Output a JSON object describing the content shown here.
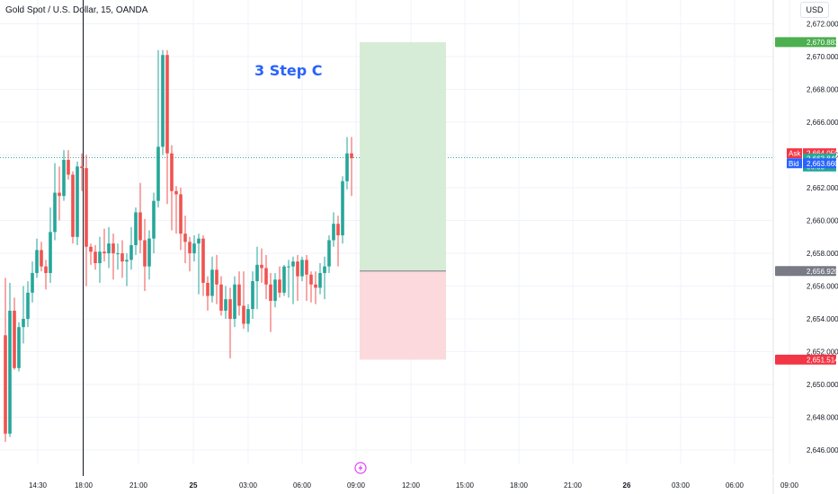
{
  "header": {
    "title": "Gold Spot / U.S. Dollar, 15, OANDA",
    "currency": "USD",
    "note": "3 Step C"
  },
  "colors": {
    "up": "#26a69a",
    "down": "#ef5350",
    "profit_zone": "#d6ecd6",
    "loss_zone": "#fbd9dc",
    "target_tag": "#4caf50",
    "stop_tag": "#f23645",
    "entry_tag": "#787b86",
    "ask_tag": "#f23645",
    "bid_tag": "#2962ff",
    "last_tag": "#26a69a",
    "bolt_icon": "#e040fb"
  },
  "chart_data": {
    "type": "candlestick",
    "title": "",
    "interval": "15",
    "y_axis": {
      "position": "right",
      "range": [
        2645.5,
        2673.4
      ],
      "ticks": [
        "2,646.000",
        "2,648.000",
        "2,650.000",
        "2,652.000",
        "2,654.000",
        "2,656.000",
        "2,658.000",
        "2,660.000",
        "2,662.000",
        "2,664.000",
        "2,666.000",
        "2,668.000",
        "2,670.000",
        "2,672.000"
      ]
    },
    "x_axis": {
      "ticks": [
        "14:30",
        "18:00",
        "21:00",
        "25",
        "03:00",
        "06:00",
        "09:00",
        "12:00",
        "15:00",
        "18:00",
        "21:00",
        "26",
        "03:00",
        "06:00",
        "09:00"
      ],
      "bold_ticks": [
        "25",
        "26"
      ]
    },
    "grid": true,
    "candles": [
      [
        2653.0,
        2656.5,
        2646.5,
        2647.0
      ],
      [
        2647.0,
        2656.2,
        2646.8,
        2654.5
      ],
      [
        2654.5,
        2655.3,
        2650.9,
        2651.0
      ],
      [
        2651.0,
        2653.8,
        2650.8,
        2653.5
      ],
      [
        2653.5,
        2656.0,
        2652.5,
        2654.0
      ],
      [
        2654.0,
        2656.3,
        2653.5,
        2655.6
      ],
      [
        2655.6,
        2657.5,
        2655.0,
        2656.8
      ],
      [
        2656.8,
        2658.9,
        2656.5,
        2658.2
      ],
      [
        2658.2,
        2658.7,
        2656.9,
        2657.2
      ],
      [
        2657.2,
        2657.6,
        2655.8,
        2656.8
      ],
      [
        2656.8,
        2660.8,
        2656.2,
        2659.3
      ],
      [
        2659.3,
        2663.5,
        2658.8,
        2661.7
      ],
      [
        2661.7,
        2663.3,
        2660.0,
        2661.5
      ],
      [
        2661.5,
        2664.3,
        2661.2,
        2663.7
      ],
      [
        2663.7,
        2664.3,
        2662.5,
        2662.8
      ],
      [
        2662.8,
        2663.0,
        2658.6,
        2659.0
      ],
      [
        2659.0,
        2663.6,
        2658.5,
        2663.3
      ],
      [
        2663.3,
        2664.1,
        2661.8,
        2663.2
      ],
      [
        2663.2,
        2664.0,
        2656.0,
        2658.4
      ],
      [
        2658.4,
        2658.6,
        2657.3,
        2658.1
      ],
      [
        2658.1,
        2658.5,
        2657.0,
        2657.4
      ],
      [
        2657.4,
        2659.0,
        2656.2,
        2658.1
      ],
      [
        2658.1,
        2659.5,
        2657.5,
        2658.0
      ],
      [
        2658.0,
        2659.6,
        2657.1,
        2658.6
      ],
      [
        2658.6,
        2659.2,
        2656.4,
        2658.0
      ],
      [
        2658.0,
        2658.6,
        2657.0,
        2658.0
      ],
      [
        2658.0,
        2658.8,
        2656.5,
        2657.5
      ],
      [
        2657.5,
        2658.0,
        2656.0,
        2657.6
      ],
      [
        2657.6,
        2659.6,
        2657.0,
        2658.5
      ],
      [
        2658.5,
        2660.8,
        2657.9,
        2660.5
      ],
      [
        2660.5,
        2662.3,
        2658.0,
        2658.8
      ],
      [
        2658.8,
        2660.1,
        2655.7,
        2657.2
      ],
      [
        2657.2,
        2659.4,
        2656.4,
        2658.9
      ],
      [
        2658.9,
        2661.7,
        2658.0,
        2661.2
      ],
      [
        2661.2,
        2670.4,
        2660.8,
        2664.5
      ],
      [
        2664.5,
        2670.4,
        2664.0,
        2670.1
      ],
      [
        2670.1,
        2670.4,
        2661.0,
        2664.1
      ],
      [
        2664.1,
        2664.6,
        2659.4,
        2661.8
      ],
      [
        2661.8,
        2662.1,
        2659.2,
        2661.6
      ],
      [
        2661.6,
        2662.0,
        2658.2,
        2659.2
      ],
      [
        2659.2,
        2660.3,
        2657.4,
        2658.7
      ],
      [
        2658.7,
        2659.0,
        2656.9,
        2658.0
      ],
      [
        2658.0,
        2659.1,
        2657.5,
        2658.6
      ],
      [
        2658.6,
        2659.2,
        2655.5,
        2658.9
      ],
      [
        2658.9,
        2659.1,
        2655.4,
        2656.2
      ],
      [
        2656.2,
        2656.6,
        2654.5,
        2655.4
      ],
      [
        2655.4,
        2657.8,
        2655.0,
        2657.0
      ],
      [
        2657.0,
        2657.9,
        2654.9,
        2656.1
      ],
      [
        2656.1,
        2656.6,
        2654.2,
        2654.5
      ],
      [
        2654.5,
        2656.0,
        2654.0,
        2655.2
      ],
      [
        2655.2,
        2655.9,
        2651.6,
        2654.0
      ],
      [
        2654.0,
        2656.6,
        2653.5,
        2656.1
      ],
      [
        2656.1,
        2656.9,
        2654.2,
        2654.8
      ],
      [
        2654.8,
        2656.9,
        2653.4,
        2653.7
      ],
      [
        2653.7,
        2654.9,
        2653.2,
        2654.6
      ],
      [
        2654.6,
        2656.9,
        2654.0,
        2656.3
      ],
      [
        2656.3,
        2658.4,
        2654.6,
        2657.3
      ],
      [
        2657.3,
        2658.3,
        2656.2,
        2657.1
      ],
      [
        2657.1,
        2657.9,
        2655.2,
        2656.1
      ],
      [
        2656.1,
        2656.8,
        2653.2,
        2655.1
      ],
      [
        2655.1,
        2656.8,
        2654.7,
        2656.4
      ],
      [
        2656.4,
        2657.2,
        2655.3,
        2655.6
      ],
      [
        2655.6,
        2657.3,
        2655.4,
        2657.2
      ],
      [
        2657.2,
        2657.6,
        2655.3,
        2657.2
      ],
      [
        2657.2,
        2657.8,
        2654.9,
        2657.5
      ],
      [
        2657.5,
        2657.9,
        2655.1,
        2656.6
      ],
      [
        2656.6,
        2657.8,
        2656.3,
        2657.6
      ],
      [
        2657.6,
        2657.9,
        2655.1,
        2656.7
      ],
      [
        2656.7,
        2656.9,
        2655.0,
        2656.1
      ],
      [
        2656.1,
        2656.9,
        2654.9,
        2655.9
      ],
      [
        2655.9,
        2657.4,
        2655.5,
        2656.8
      ],
      [
        2656.8,
        2657.8,
        2655.2,
        2657.2
      ],
      [
        2657.2,
        2659.1,
        2656.8,
        2658.8
      ],
      [
        2658.8,
        2660.5,
        2658.4,
        2659.8
      ],
      [
        2659.8,
        2660.3,
        2657.2,
        2659.1
      ],
      [
        2659.1,
        2662.7,
        2658.6,
        2662.4
      ],
      [
        2662.4,
        2665.1,
        2661.9,
        2664.1
      ],
      [
        2664.1,
        2665.1,
        2661.5,
        2663.8
      ]
    ],
    "vertical_marker_time": "18:00",
    "position": {
      "type": "long",
      "target": "2,670.883",
      "entry": "2,656.920",
      "stop": "2,651.514",
      "target_value": 2670.883,
      "entry_value": 2656.92,
      "stop_value": 2651.514
    },
    "price_tags": {
      "ask_label": "Ask",
      "ask": "2,664.050",
      "ask_value": 2664.05,
      "last": "2,663.845",
      "last_value": 2663.845,
      "countdown": "06:03",
      "bid_label": "Bid",
      "bid": "2,663.660",
      "bid_value": 2663.66
    },
    "icons": [
      "bolt-icon"
    ]
  }
}
